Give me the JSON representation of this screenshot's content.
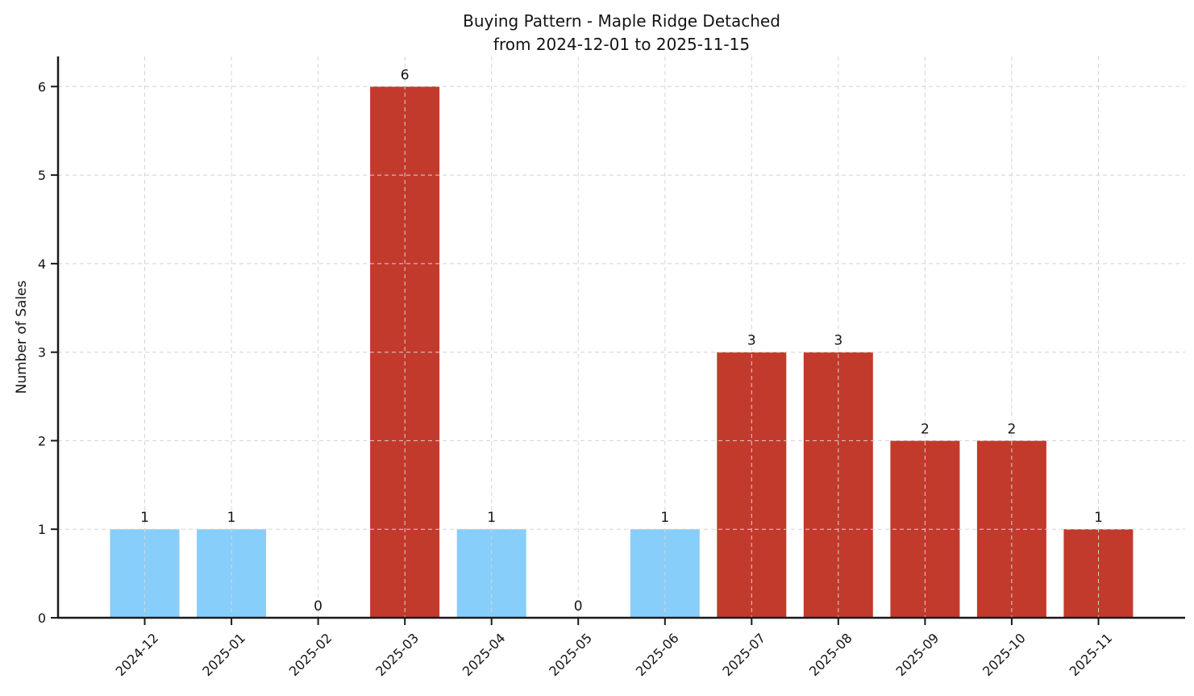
{
  "chart_data": {
    "type": "bar",
    "title": "Buying Pattern - Maple Ridge Detached",
    "subtitle": "from 2024-12-01 to 2025-11-15",
    "xlabel": "",
    "ylabel": "Number of Sales",
    "categories": [
      "2024-12",
      "2025-01",
      "2025-02",
      "2025-03",
      "2025-04",
      "2025-05",
      "2025-06",
      "2025-07",
      "2025-08",
      "2025-09",
      "2025-10",
      "2025-11"
    ],
    "values": [
      1,
      1,
      0,
      6,
      1,
      0,
      1,
      3,
      3,
      2,
      2,
      1
    ],
    "value_labels": [
      "1",
      "1",
      "0",
      "6",
      "1",
      "0",
      "1",
      "3",
      "3",
      "2",
      "2",
      "1"
    ],
    "bar_colors": [
      "#87CEFA",
      "#87CEFA",
      null,
      "#C23A2C",
      "#87CEFA",
      null,
      "#87CEFA",
      "#C23A2C",
      "#C23A2C",
      "#C23A2C",
      "#C23A2C",
      "#C23A2C"
    ],
    "yticks": [
      0,
      1,
      2,
      3,
      4,
      5,
      6
    ],
    "ytick_labels": [
      "0",
      "1",
      "2",
      "3",
      "4",
      "5",
      "6"
    ],
    "ylim": [
      0,
      6.34
    ],
    "xlim": [
      -1,
      12
    ],
    "bar_width_units": 0.8,
    "grid": {
      "visible": true,
      "style": "dashed",
      "color": "#d4d4d4",
      "drawn_over_bars": true
    },
    "legend": "none",
    "colors": {
      "bar_blue": "#87CEFA",
      "bar_red": "#C23A2C",
      "axis": "#1a1a1a",
      "text": "#141414",
      "background": "#ffffff"
    }
  }
}
